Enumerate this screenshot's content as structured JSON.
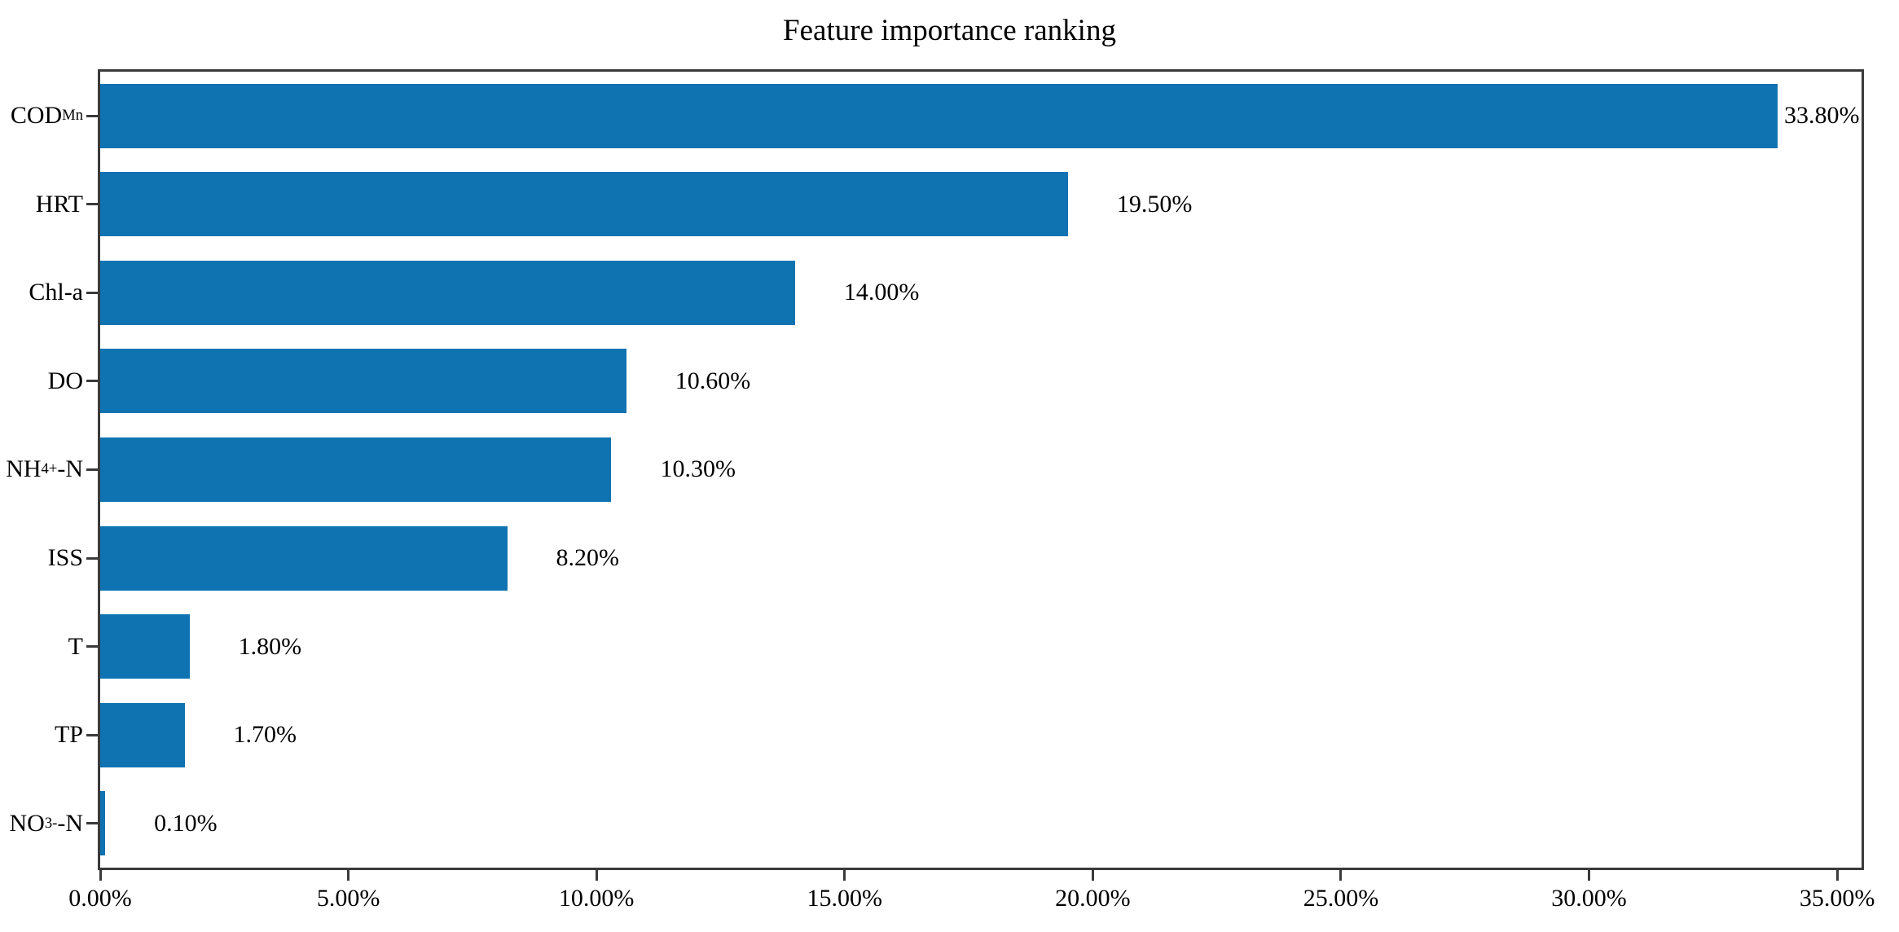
{
  "title": "Feature importance ranking",
  "chart_data": {
    "type": "bar",
    "orientation": "horizontal",
    "title": "Feature importance ranking",
    "xlabel": "",
    "ylabel": "",
    "xlim": [
      0,
      35.49
    ],
    "grid": false,
    "legend": null,
    "bar_color": "#0f73b2",
    "axis_color": "#3a3a3a",
    "x_tick_labels": [
      "0.00%",
      "5.00%",
      "10.00%",
      "15.00%",
      "20.00%",
      "25.00%",
      "30.00%",
      "35.00%"
    ],
    "x_tick_values": [
      0,
      5,
      10,
      15,
      20,
      25,
      30,
      35
    ],
    "categories": [
      "COD_Mn",
      "HRT",
      "Chl-a",
      "DO",
      "NH4+-N",
      "ISS",
      "T",
      "TP",
      "NO3--N"
    ],
    "values": [
      33.8,
      19.5,
      14.0,
      10.6,
      10.3,
      8.2,
      1.8,
      1.7,
      0.1
    ],
    "rows": [
      {
        "label_base": "COD",
        "label_sub": "Mn",
        "label_sup": "",
        "label_suffix": "",
        "value": 33.8,
        "value_label": "33.80%"
      },
      {
        "label_base": "HRT",
        "label_sub": "",
        "label_sup": "",
        "label_suffix": "",
        "value": 19.5,
        "value_label": "19.50%"
      },
      {
        "label_base": "Chl-a",
        "label_sub": "",
        "label_sup": "",
        "label_suffix": "",
        "value": 14.0,
        "value_label": "14.00%"
      },
      {
        "label_base": "DO",
        "label_sub": "",
        "label_sup": "",
        "label_suffix": "",
        "value": 10.6,
        "value_label": "10.60%"
      },
      {
        "label_base": "NH",
        "label_sub": "4",
        "label_sup": "+",
        "label_suffix": "-N",
        "value": 10.3,
        "value_label": "10.30%"
      },
      {
        "label_base": "ISS",
        "label_sub": "",
        "label_sup": "",
        "label_suffix": "",
        "value": 8.2,
        "value_label": "8.20%"
      },
      {
        "label_base": "T",
        "label_sub": "",
        "label_sup": "",
        "label_suffix": "",
        "value": 1.8,
        "value_label": "1.80%"
      },
      {
        "label_base": "TP",
        "label_sub": "",
        "label_sup": "",
        "label_suffix": "",
        "value": 1.7,
        "value_label": "1.70%"
      },
      {
        "label_base": "NO",
        "label_sub": "3",
        "label_sup": "-",
        "label_suffix": "-N",
        "value": 0.1,
        "value_label": "0.10%"
      }
    ]
  }
}
